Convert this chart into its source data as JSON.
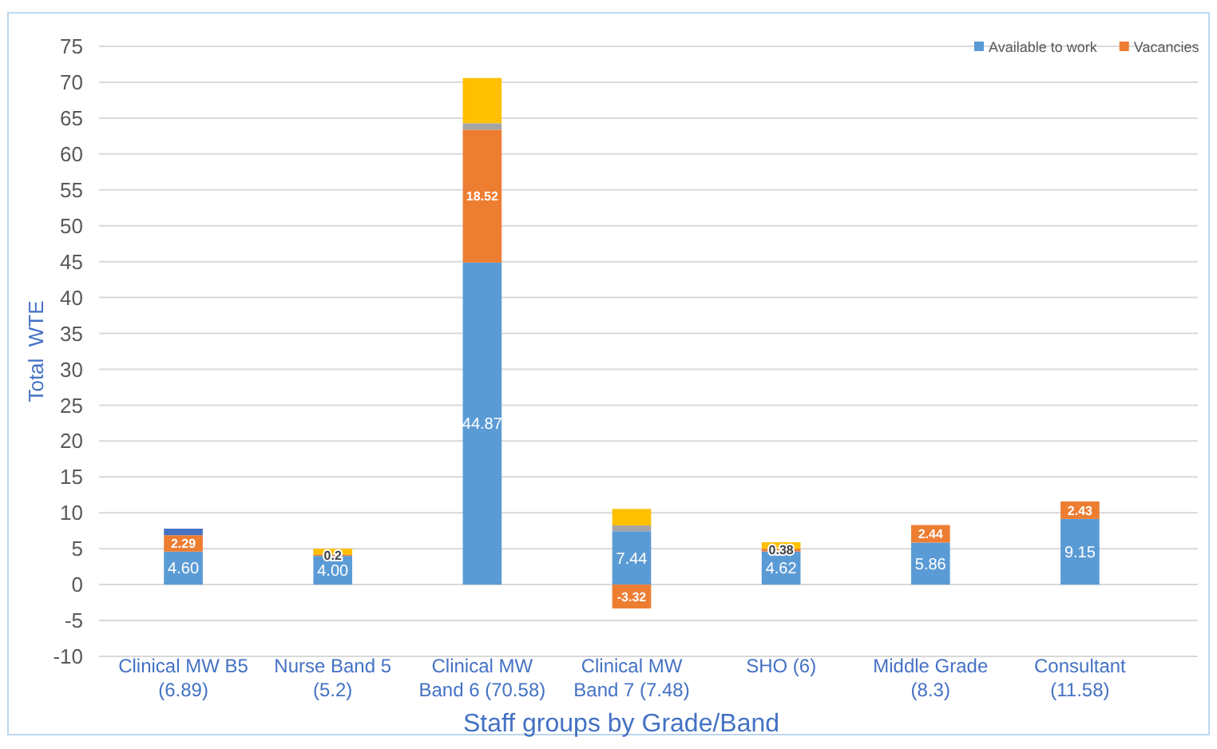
{
  "chart_data": {
    "type": "bar",
    "stacked": true,
    "xlabel": "Staff groups by Grade/Band",
    "ylabel": "Total  WTE",
    "categories": [
      "Clinical MW B5\n(6.89)",
      "Nurse Band 5\n(5.2)",
      "Clinical MW\nBand 6 (70.58)",
      "Clinical MW\nBand 7 (7.48)",
      "SHO (6)",
      "Middle Grade\n(8.3)",
      "Consultant\n(11.58)"
    ],
    "series": [
      {
        "name": "Available to work",
        "color": "#5b9bd5",
        "values": [
          4.6,
          4.0,
          44.87,
          7.44,
          4.62,
          5.86,
          9.15
        ],
        "value_labels": [
          "4.60",
          "4.00",
          "44.87",
          "7.44",
          "4.62",
          "5.86",
          "9.15"
        ]
      },
      {
        "name": "Vacancies",
        "color": "#ed7d31",
        "values": [
          2.29,
          0.2,
          18.52,
          -3.32,
          0.38,
          2.44,
          2.43
        ],
        "value_labels": [
          "2.29",
          "0.2",
          "18.52",
          "-3.32",
          "0.38",
          "2.44",
          "2.43"
        ]
      },
      {
        "color": "#a5a5a5",
        "values": [
          null,
          null,
          0.9,
          0.8,
          null,
          null,
          null
        ]
      },
      {
        "color": "#ffc000",
        "values": [
          null,
          0.8,
          6.3,
          2.3,
          0.9,
          null,
          null
        ]
      },
      {
        "color": "#4472c4",
        "values": [
          0.9,
          null,
          null,
          null,
          null,
          null,
          null
        ]
      }
    ],
    "ylim": [
      -10,
      75
    ],
    "yticks": [
      -10,
      -5,
      0,
      5,
      10,
      15,
      20,
      25,
      30,
      35,
      40,
      45,
      50,
      55,
      60,
      65,
      70,
      75
    ],
    "grid": "y",
    "legend": "top right"
  }
}
